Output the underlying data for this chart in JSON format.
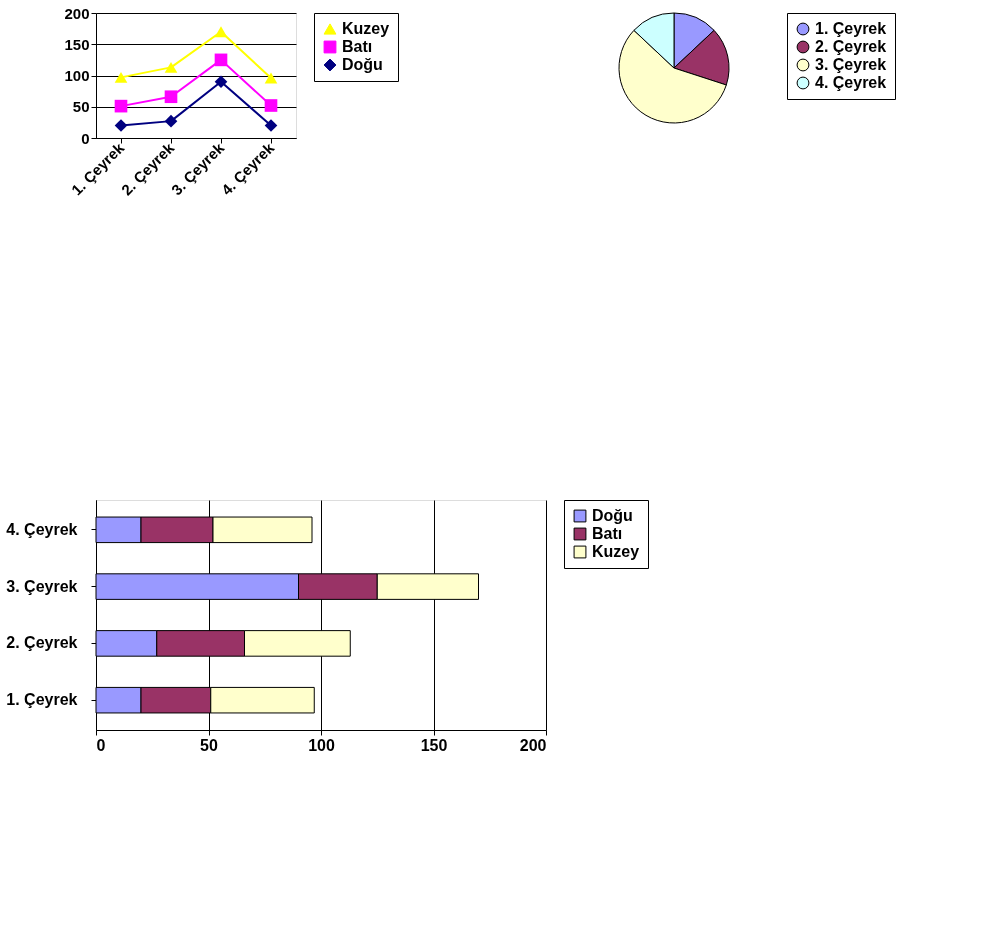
{
  "chart_data": [
    {
      "type": "line",
      "categories": [
        "1. Çeyrek",
        "2. Çeyrek",
        "3. Çeyrek",
        "4. Çeyrek"
      ],
      "ylim": [
        0,
        200
      ],
      "yticks": [
        0,
        50,
        100,
        150,
        200
      ],
      "grid": "y",
      "legend": "right",
      "series": [
        {
          "name": "Kuzey",
          "color": "#ffff00",
          "marker": "triangle",
          "values": [
            97,
            113,
            170,
            96
          ]
        },
        {
          "name": "Batı",
          "color": "#ff00ff",
          "marker": "square",
          "values": [
            51,
            66,
            125,
            52
          ]
        },
        {
          "name": "Doğu",
          "color": "#000080",
          "marker": "diamond",
          "values": [
            20,
            27,
            90,
            20
          ]
        }
      ]
    },
    {
      "type": "pie",
      "categories": [
        "1. Çeyrek",
        "2. Çeyrek",
        "3. Çeyrek",
        "4. Çeyrek"
      ],
      "values": [
        13,
        17,
        57,
        13
      ],
      "colors": [
        "#9999ff",
        "#993366",
        "#ffffcc",
        "#ccffff"
      ],
      "legend": "right"
    },
    {
      "type": "bar",
      "orientation": "horizontal",
      "stacked": true,
      "categories": [
        "4. Çeyrek",
        "3. Çeyrek",
        "2. Çeyrek",
        "1. Çeyrek"
      ],
      "xlim": [
        0,
        200
      ],
      "xticks": [
        0,
        50,
        100,
        150,
        200
      ],
      "grid": "x",
      "legend": "right",
      "series": [
        {
          "name": "Doğu",
          "color": "#9999ff",
          "values": [
            20,
            90,
            27,
            20
          ]
        },
        {
          "name": "Batı",
          "color": "#993366",
          "values": [
            32,
            35,
            39,
            31
          ]
        },
        {
          "name": "Kuzey",
          "color": "#ffffcc",
          "values": [
            44,
            45,
            47,
            46
          ]
        }
      ]
    }
  ]
}
